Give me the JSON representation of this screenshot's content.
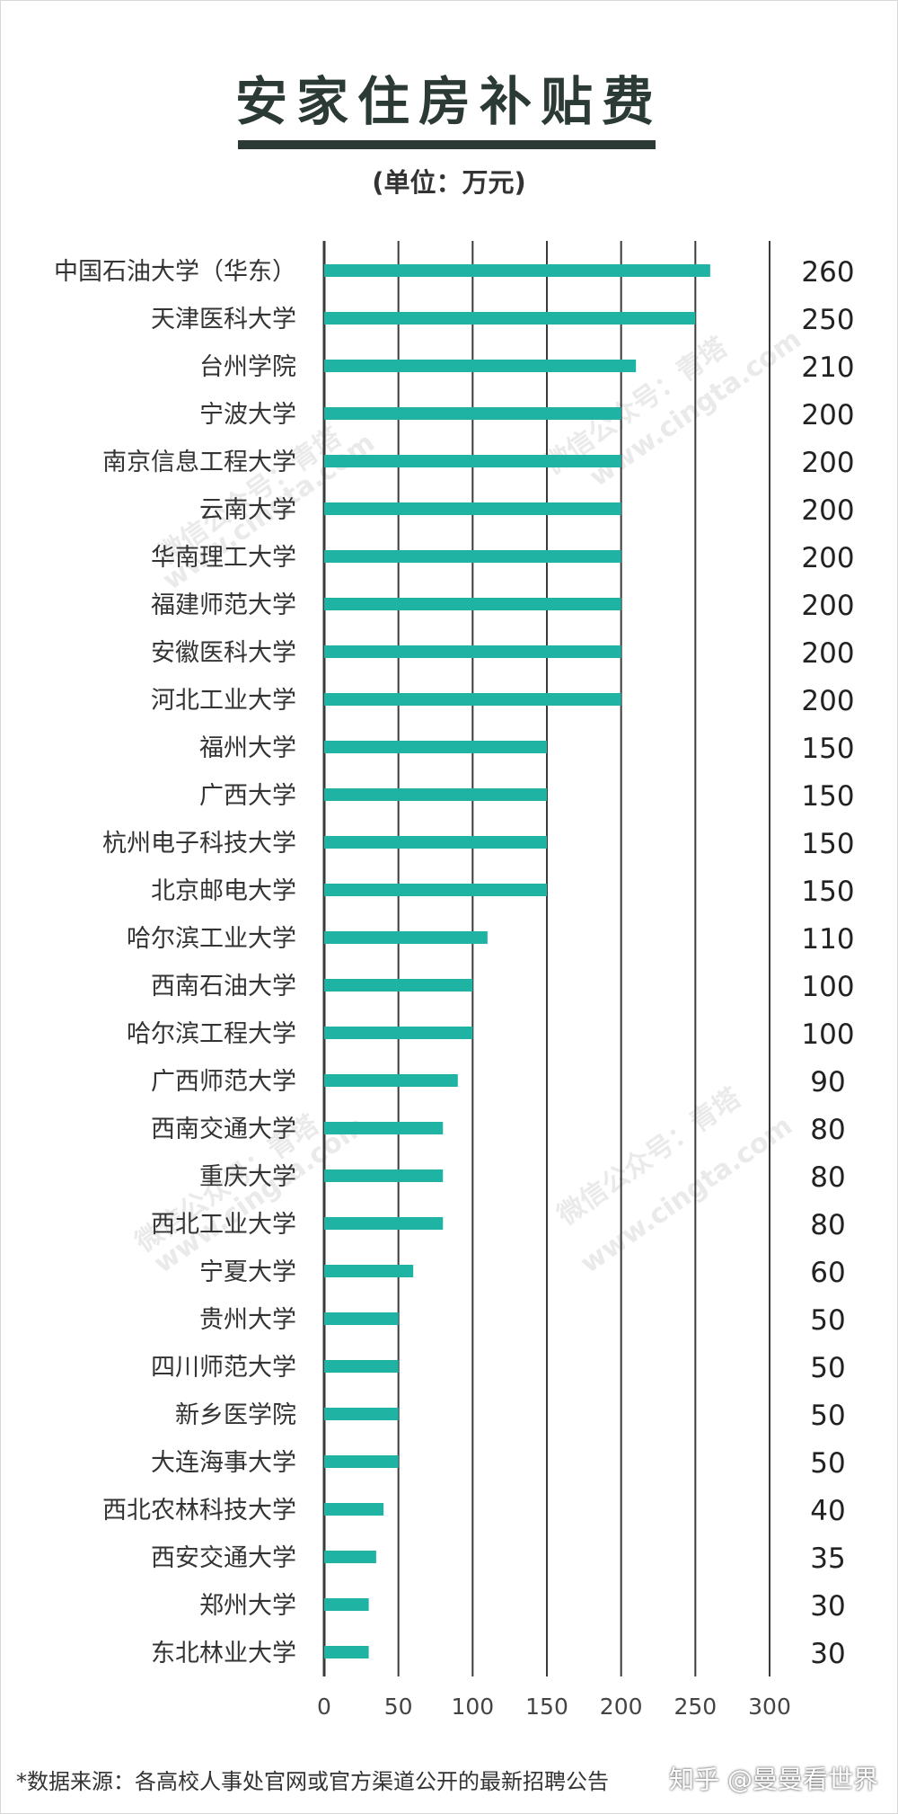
{
  "colors": {
    "bar": "#1fb3a3",
    "title_bar": "#2c3a36",
    "grid": "#3a3a3a"
  },
  "watermarks": {
    "account": "微信公众号：青塔",
    "site": "www.cingta.com"
  },
  "footer": {
    "source": "*数据来源：各高校人事处官网或官方渠道公开的最新招聘公告",
    "credit": "知乎 @曼曼看世界"
  },
  "chart_data": {
    "type": "bar",
    "orientation": "horizontal",
    "title": "安家住房补贴费",
    "subtitle": "(单位：万元)",
    "categories": [
      "中国石油大学（华东）",
      "天津医科大学",
      "台州学院",
      "宁波大学",
      "南京信息工程大学",
      "云南大学",
      "华南理工大学",
      "福建师范大学",
      "安徽医科大学",
      "河北工业大学",
      "福州大学",
      "广西大学",
      "杭州电子科技大学",
      "北京邮电大学",
      "哈尔滨工业大学",
      "西南石油大学",
      "哈尔滨工程大学",
      "广西师范大学",
      "西南交通大学",
      "重庆大学",
      "西北工业大学",
      "宁夏大学",
      "贵州大学",
      "四川师范大学",
      "新乡医学院",
      "大连海事大学",
      "西北农林科技大学",
      "西安交通大学",
      "郑州大学",
      "东北林业大学"
    ],
    "values": [
      260,
      250,
      210,
      200,
      200,
      200,
      200,
      200,
      200,
      200,
      150,
      150,
      150,
      150,
      110,
      100,
      100,
      90,
      80,
      80,
      80,
      60,
      50,
      50,
      50,
      50,
      40,
      35,
      30,
      30
    ],
    "value_labels": [
      "260",
      "250",
      "210",
      "200",
      "200",
      "200",
      "200",
      "200",
      "200",
      "200",
      "150",
      "150",
      "150",
      "150",
      "110",
      "100",
      "100",
      "90",
      "80",
      "80",
      "80",
      "60",
      "50",
      "50",
      "50",
      "50",
      "40",
      "35",
      "30",
      "30"
    ],
    "xlim": [
      0,
      300
    ],
    "xticks": [
      "0",
      "50",
      "100",
      "150",
      "200",
      "250",
      "300"
    ],
    "grid": true,
    "legend": "none"
  }
}
